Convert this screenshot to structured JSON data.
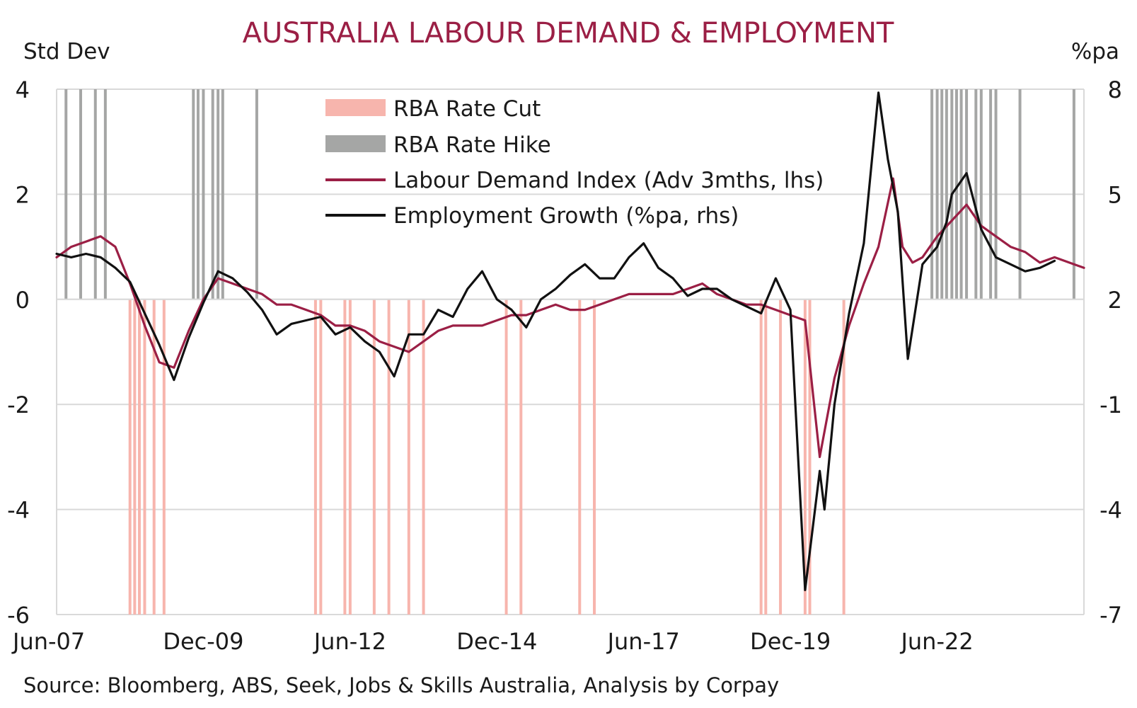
{
  "chart_data": {
    "type": "line",
    "title": "AUSTRALIA LABOUR DEMAND & EMPLOYMENT",
    "left_axis": {
      "label": "Std Dev",
      "range": [
        -6,
        4
      ],
      "ticks": [
        "4",
        "2",
        "0",
        "-2",
        "-4",
        "-6"
      ]
    },
    "right_axis": {
      "label": "%pa",
      "range": [
        -7,
        8
      ],
      "ticks": [
        "8",
        "5",
        "2",
        "-1",
        "-4",
        "-7"
      ]
    },
    "x_axis": {
      "range": [
        "2007-06",
        "2024-12"
      ],
      "tick_labels": [
        "Jun-07",
        "Dec-09",
        "Jun-12",
        "Dec-14",
        "Jun-17",
        "Dec-19",
        "Jun-22"
      ],
      "tick_dates": [
        2007.42,
        2009.92,
        2012.42,
        2014.92,
        2017.42,
        2019.92,
        2022.42
      ]
    },
    "grid": true,
    "legend_position": "top-center",
    "legend": [
      {
        "label": "RBA Rate Cut",
        "kind": "band",
        "color": "#f7b5ad"
      },
      {
        "label": "RBA Rate Hike",
        "kind": "band",
        "color": "#a5a6a5"
      },
      {
        "label": "Labour Demand Index (Adv 3mths, lhs)",
        "kind": "line",
        "color": "#9b1f45"
      },
      {
        "label": "Employment Growth (%pa, rhs)",
        "kind": "line",
        "color": "#111111"
      }
    ],
    "rate_hikes": [
      2007.58,
      2007.83,
      2008.08,
      2008.25,
      2009.75,
      2009.83,
      2009.92,
      2010.08,
      2010.17,
      2010.25,
      2010.83,
      2022.33,
      2022.42,
      2022.5,
      2022.58,
      2022.67,
      2022.75,
      2022.83,
      2022.92,
      2023.08,
      2023.17,
      2023.33,
      2023.42,
      2023.83,
      2024.75
    ],
    "rate_cuts": [
      2008.67,
      2008.75,
      2008.83,
      2008.92,
      2009.08,
      2009.25,
      2011.83,
      2011.92,
      2012.33,
      2012.42,
      2012.83,
      2013.08,
      2013.42,
      2013.67,
      2015.08,
      2015.33,
      2016.33,
      2016.58,
      2019.42,
      2019.5,
      2019.75,
      2020.17,
      2020.25,
      2020.83
    ],
    "series": [
      {
        "name": "Labour Demand Index (Adv 3mths, lhs)",
        "axis": "left",
        "color": "#9b1f45",
        "x": [
          2007.42,
          2007.67,
          2007.92,
          2008.17,
          2008.42,
          2008.67,
          2008.92,
          2009.17,
          2009.42,
          2009.67,
          2009.92,
          2010.17,
          2010.42,
          2010.67,
          2010.92,
          2011.17,
          2011.42,
          2011.67,
          2011.92,
          2012.17,
          2012.42,
          2012.67,
          2012.92,
          2013.17,
          2013.42,
          2013.67,
          2013.92,
          2014.17,
          2014.42,
          2014.67,
          2014.92,
          2015.17,
          2015.42,
          2015.67,
          2015.92,
          2016.17,
          2016.42,
          2016.67,
          2016.92,
          2017.17,
          2017.42,
          2017.67,
          2017.92,
          2018.17,
          2018.42,
          2018.67,
          2018.92,
          2019.17,
          2019.42,
          2019.67,
          2019.92,
          2020.17,
          2020.42,
          2020.67,
          2020.92,
          2021.17,
          2021.42,
          2021.67,
          2021.83,
          2022.0,
          2022.17,
          2022.42,
          2022.67,
          2022.92,
          2023.17,
          2023.42,
          2023.67,
          2023.92,
          2024.17,
          2024.42,
          2024.67,
          2024.92
        ],
        "values": [
          0.8,
          1.0,
          1.1,
          1.2,
          1.0,
          0.3,
          -0.5,
          -1.2,
          -1.3,
          -0.6,
          0.0,
          0.4,
          0.3,
          0.2,
          0.1,
          -0.1,
          -0.1,
          -0.2,
          -0.3,
          -0.5,
          -0.5,
          -0.6,
          -0.8,
          -0.9,
          -1.0,
          -0.8,
          -0.6,
          -0.5,
          -0.5,
          -0.5,
          -0.4,
          -0.3,
          -0.3,
          -0.2,
          -0.1,
          -0.2,
          -0.2,
          -0.1,
          0.0,
          0.1,
          0.1,
          0.1,
          0.1,
          0.2,
          0.3,
          0.1,
          0.0,
          -0.1,
          -0.1,
          -0.2,
          -0.3,
          -0.4,
          -3.0,
          -1.5,
          -0.5,
          0.3,
          1.0,
          2.3,
          1.0,
          0.7,
          0.8,
          1.2,
          1.5,
          1.8,
          1.4,
          1.2,
          1.0,
          0.9,
          0.7,
          0.8,
          0.7,
          0.6
        ]
      },
      {
        "name": "Employment Growth (%pa, rhs)",
        "axis": "right",
        "color": "#111111",
        "x": [
          2007.42,
          2007.67,
          2007.92,
          2008.17,
          2008.42,
          2008.67,
          2008.92,
          2009.17,
          2009.42,
          2009.67,
          2009.92,
          2010.17,
          2010.42,
          2010.67,
          2010.92,
          2011.17,
          2011.42,
          2011.67,
          2011.92,
          2012.17,
          2012.42,
          2012.67,
          2012.92,
          2013.17,
          2013.42,
          2013.67,
          2013.92,
          2014.17,
          2014.42,
          2014.67,
          2014.92,
          2015.17,
          2015.42,
          2015.67,
          2015.92,
          2016.17,
          2016.42,
          2016.67,
          2016.92,
          2017.17,
          2017.42,
          2017.67,
          2017.92,
          2018.17,
          2018.42,
          2018.67,
          2018.92,
          2019.17,
          2019.42,
          2019.67,
          2019.92,
          2020.17,
          2020.42,
          2020.5,
          2020.67,
          2020.92,
          2021.17,
          2021.42,
          2021.58,
          2021.75,
          2021.92,
          2022.17,
          2022.42,
          2022.58,
          2022.67,
          2022.92,
          2023.17,
          2023.42,
          2023.67,
          2023.92,
          2024.17,
          2024.42
        ],
        "values": [
          3.3,
          3.2,
          3.3,
          3.2,
          2.9,
          2.5,
          1.6,
          0.7,
          -0.3,
          0.9,
          1.9,
          2.8,
          2.6,
          2.2,
          1.7,
          1.0,
          1.3,
          1.4,
          1.5,
          1.0,
          1.2,
          0.8,
          0.5,
          -0.2,
          1.0,
          1.0,
          1.7,
          1.5,
          2.3,
          2.8,
          2.0,
          1.7,
          1.2,
          2.0,
          2.3,
          2.7,
          3.0,
          2.6,
          2.6,
          3.2,
          3.6,
          2.9,
          2.6,
          2.1,
          2.3,
          2.3,
          2.0,
          1.8,
          1.6,
          2.6,
          1.7,
          -6.3,
          -2.9,
          -4.0,
          -1.0,
          1.6,
          3.6,
          7.9,
          6.0,
          4.5,
          0.3,
          3.0,
          3.5,
          4.2,
          5.0,
          5.6,
          4.0,
          3.2,
          3.0,
          2.8,
          2.9,
          3.1
        ]
      }
    ],
    "source": "Source: Bloomberg, ABS, Seek, Jobs & Skills Australia, Analysis by Corpay"
  }
}
